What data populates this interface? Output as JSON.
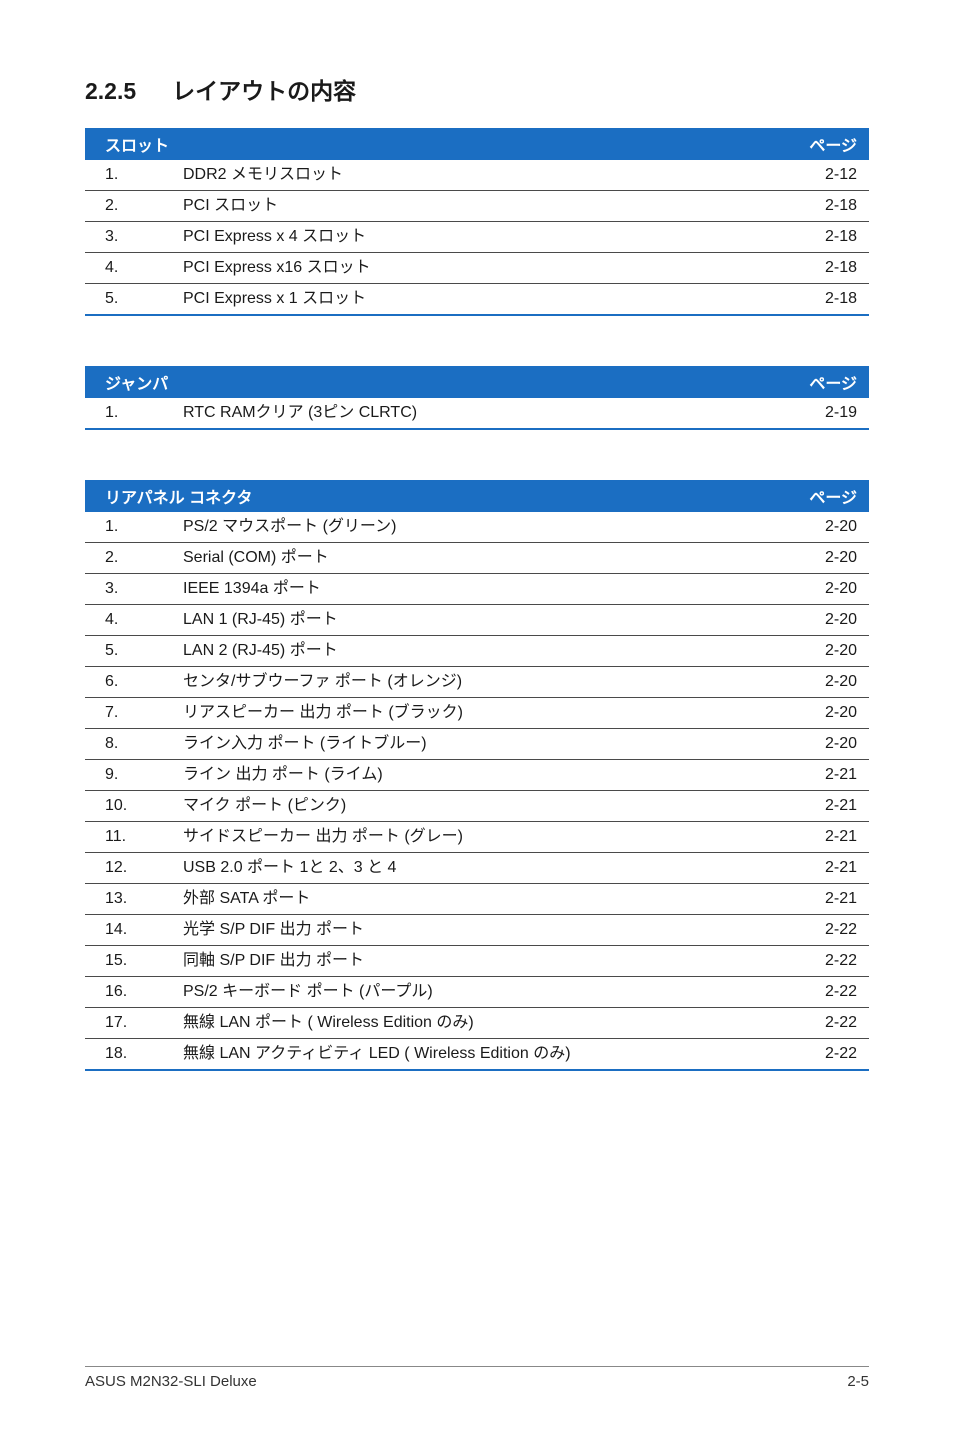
{
  "heading": {
    "number": "2.2.5",
    "title": "レイアウトの内容"
  },
  "colors": {
    "header_bg": "#1b6ec2",
    "row_border": "#4a4a4a"
  },
  "tables": [
    {
      "header_left": "スロット",
      "header_right": "ページ",
      "rows": [
        {
          "i": "1.",
          "label": "DDR2 メモリスロット",
          "page": "2-12"
        },
        {
          "i": "2.",
          "label": "PCI スロット",
          "page": "2-18"
        },
        {
          "i": "3.",
          "label": "PCI Express x 4 スロット",
          "page": "2-18"
        },
        {
          "i": "4.",
          "label": "PCI Express x16 スロット",
          "page": "2-18"
        },
        {
          "i": "5.",
          "label": "PCI Express x 1 スロット",
          "page": "2-18"
        }
      ]
    },
    {
      "header_left": "ジャンパ",
      "header_right": "ページ",
      "rows": [
        {
          "i": "1.",
          "label": "RTC RAMクリア (3ピン CLRTC)",
          "page": "2-19"
        }
      ]
    },
    {
      "header_left": "リアパネル コネクタ",
      "header_right": "ページ",
      "rows": [
        {
          "i": "1.",
          "label": "PS/2 マウスポート (グリーン)",
          "page": "2-20"
        },
        {
          "i": "2.",
          "label": "Serial (COM) ポート",
          "page": "2-20"
        },
        {
          "i": "3.",
          "label": "IEEE 1394a ポート",
          "page": "2-20"
        },
        {
          "i": "4.",
          "label": "LAN 1 (RJ-45) ポート",
          "page": "2-20"
        },
        {
          "i": "5.",
          "label": "LAN 2 (RJ-45) ポート",
          "page": "2-20"
        },
        {
          "i": "6.",
          "label": "センタ/サブウーファ ポート (オレンジ)",
          "page": "2-20"
        },
        {
          "i": "7.",
          "label": "リアスピーカー 出力 ポート (ブラック)",
          "page": "2-20"
        },
        {
          "i": "8.",
          "label": "ライン入力 ポート (ライトブルー)",
          "page": "2-20"
        },
        {
          "i": "9.",
          "label": "ライン 出力 ポート (ライム)",
          "page": "2-21"
        },
        {
          "i": "10.",
          "label": "マイク ポート (ピンク)",
          "page": "2-21"
        },
        {
          "i": "11.",
          "label": "サイドスピーカー 出力 ポート (グレー)",
          "page": "2-21"
        },
        {
          "i": "12.",
          "label": "USB 2.0 ポート 1と 2、3 と 4",
          "page": "2-21"
        },
        {
          "i": "13.",
          "label": "外部 SATA ポート",
          "page": "2-21"
        },
        {
          "i": "14.",
          "label": "光学 S/P DIF 出力 ポート",
          "page": "2-22"
        },
        {
          "i": "15.",
          "label": "同軸 S/P DIF 出力 ポート",
          "page": "2-22"
        },
        {
          "i": "16.",
          "label": "PS/2 キーボード ポート (パープル)",
          "page": "2-22"
        },
        {
          "i": "17.",
          "label": "無線 LAN ポート ( Wireless Edition のみ)",
          "page": "2-22"
        },
        {
          "i": "18.",
          "label": "無線 LAN アクティビティ LED ( Wireless Edition のみ)",
          "page": "2-22"
        }
      ]
    }
  ],
  "footer": {
    "left": "ASUS M2N32-SLI Deluxe",
    "right": "2-5"
  }
}
